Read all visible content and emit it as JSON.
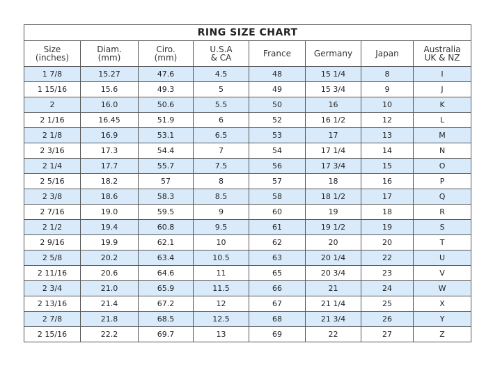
{
  "title": "RING SIZE CHART",
  "columns": [
    "Size\n(inches)",
    "Diam.\n(mm)",
    "Ciro.\n(mm)",
    "U.S.A\n& CA",
    "France",
    "Germany",
    "Japan",
    "Australia\nUK & NZ"
  ],
  "rows": [
    [
      "1 7/8",
      "15.27",
      "47.6",
      "4.5",
      "48",
      "15 1/4",
      "8",
      "I"
    ],
    [
      "1 15/16",
      "15.6",
      "49.3",
      "5",
      "49",
      "15 3/4",
      "9",
      "J"
    ],
    [
      "2",
      "16.0",
      "50.6",
      "5.5",
      "50",
      "16",
      "10",
      "K"
    ],
    [
      "2 1/16",
      "16.45",
      "51.9",
      "6",
      "52",
      "16 1/2",
      "12",
      "L"
    ],
    [
      "2 1/8",
      "16.9",
      "53.1",
      "6.5",
      "53",
      "17",
      "13",
      "M"
    ],
    [
      "2 3/16",
      "17.3",
      "54.4",
      "7",
      "54",
      "17 1/4",
      "14",
      "N"
    ],
    [
      "2 1/4",
      "17.7",
      "55.7",
      "7.5",
      "56",
      "17 3/4",
      "15",
      "O"
    ],
    [
      "2 5/16",
      "18.2",
      "57",
      "8",
      "57",
      "18",
      "16",
      "P"
    ],
    [
      "2 3/8",
      "18.6",
      "58.3",
      "8.5",
      "58",
      "18 1/2",
      "17",
      "Q"
    ],
    [
      "2 7/16",
      "19.0",
      "59.5",
      "9",
      "60",
      "19",
      "18",
      "R"
    ],
    [
      "2 1/2",
      "19.4",
      "60.8",
      "9.5",
      "61",
      "19 1/2",
      "19",
      "S"
    ],
    [
      "2 9/16",
      "19.9",
      "62.1",
      "10",
      "62",
      "20",
      "20",
      "T"
    ],
    [
      "2 5/8",
      "20.2",
      "63.4",
      "10.5",
      "63",
      "20 1/4",
      "22",
      "U"
    ],
    [
      "2 11/16",
      "20.6",
      "64.6",
      "11",
      "65",
      "20 3/4",
      "23",
      "V"
    ],
    [
      "2 3/4",
      "21.0",
      "65.9",
      "11.5",
      "66",
      "21",
      "24",
      "W"
    ],
    [
      "2 13/16",
      "21.4",
      "67.2",
      "12",
      "67",
      "21 1/4",
      "25",
      "X"
    ],
    [
      "2 7/8",
      "21.8",
      "68.5",
      "12.5",
      "68",
      "21 3/4",
      "26",
      "Y"
    ],
    [
      "2 15/16",
      "22.2",
      "69.7",
      "13",
      "69",
      "22",
      "27",
      "Z"
    ]
  ],
  "colors": {
    "shaded_row": "#d9ebfa",
    "border": "#555555"
  }
}
